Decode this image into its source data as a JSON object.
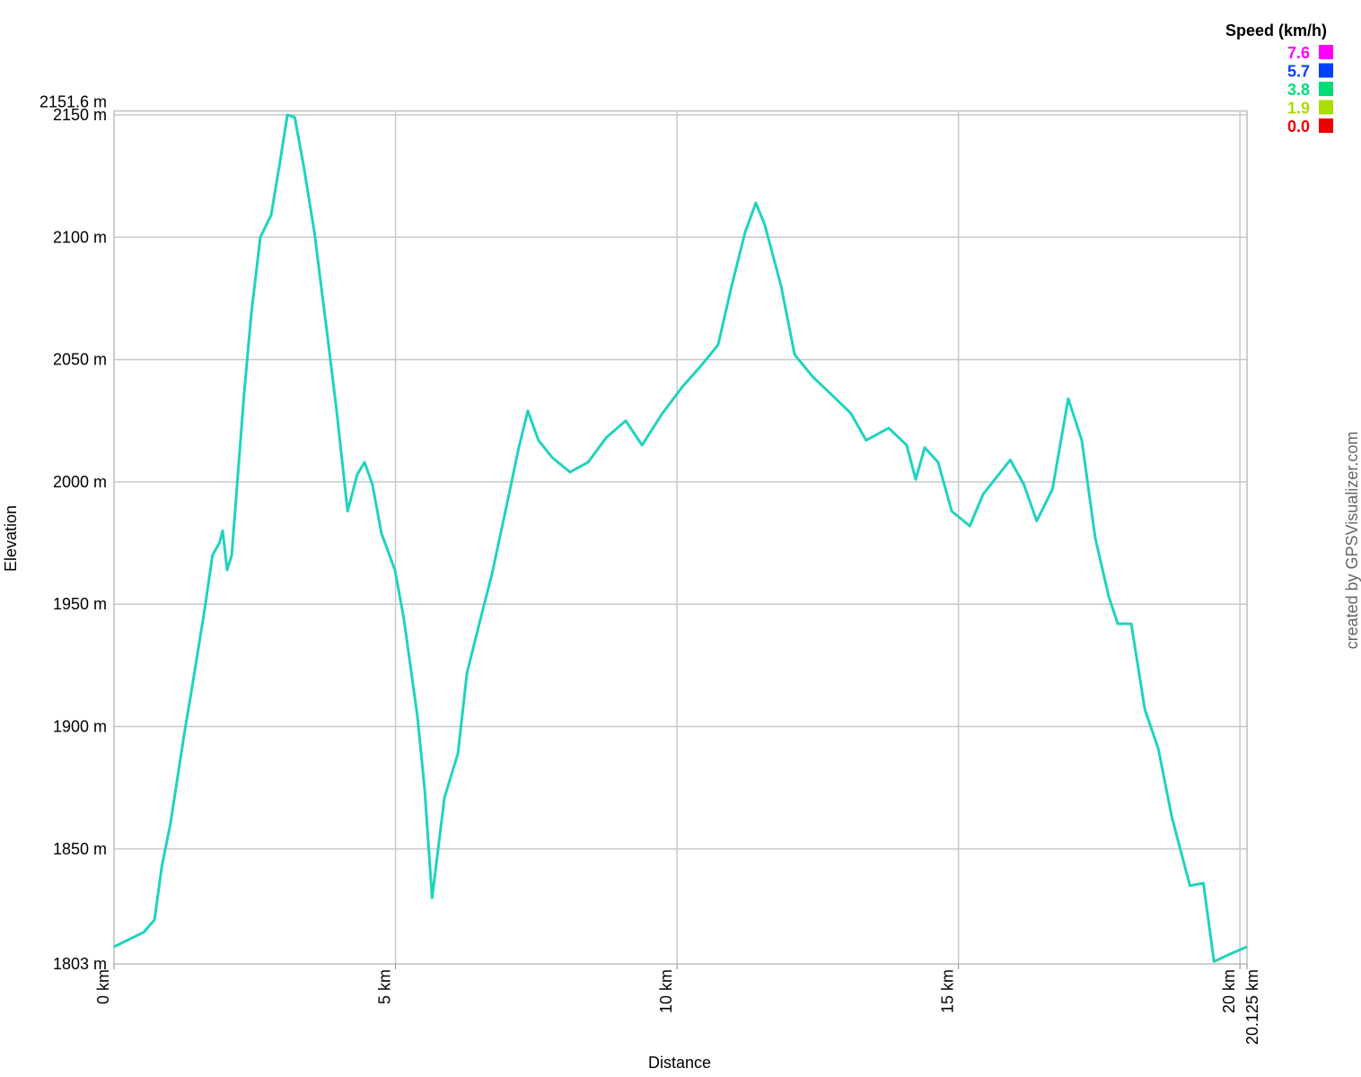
{
  "chart_data": {
    "type": "line",
    "x_label": "Distance",
    "y_label": "Elevation",
    "credit": "created by GPSVisualizer.com",
    "color": "#1fd3c0",
    "grid": true,
    "xlim": [
      0,
      20.125
    ],
    "ylim": [
      1803,
      2151.6
    ],
    "xticks": [
      {
        "value": 0,
        "label": "0 km"
      },
      {
        "value": 5,
        "label": "5 km"
      },
      {
        "value": 10,
        "label": "10 km"
      },
      {
        "value": 15,
        "label": "15 km"
      },
      {
        "value": 20,
        "label": "20 km"
      },
      {
        "value": 20.125,
        "label": "20.125 km"
      }
    ],
    "yticks": [
      {
        "value": 1803,
        "label": "1803 m"
      },
      {
        "value": 1850,
        "label": "1850 m"
      },
      {
        "value": 1900,
        "label": "1900 m"
      },
      {
        "value": 1950,
        "label": "1950 m"
      },
      {
        "value": 2000,
        "label": "2000 m"
      },
      {
        "value": 2050,
        "label": "2050 m"
      },
      {
        "value": 2100,
        "label": "2100 m"
      },
      {
        "value": 2150,
        "label": "2150 m"
      },
      {
        "value": 2151.6,
        "label": "2151.6 m"
      }
    ],
    "x": [
      0,
      0.53,
      0.72,
      0.85,
      1.0,
      1.24,
      1.4,
      1.61,
      1.75,
      1.87,
      1.93,
      2.01,
      2.09,
      2.2,
      2.31,
      2.44,
      2.6,
      2.79,
      2.95,
      3.08,
      3.21,
      3.37,
      3.56,
      3.8,
      3.96,
      4.15,
      4.32,
      4.45,
      4.59,
      4.75,
      4.99,
      5.15,
      5.39,
      5.52,
      5.65,
      5.87,
      6.11,
      6.27,
      6.51,
      6.71,
      6.99,
      7.19,
      7.35,
      7.54,
      7.78,
      8.1,
      8.42,
      8.74,
      9.09,
      9.38,
      9.74,
      10.1,
      10.41,
      10.73,
      10.97,
      11.21,
      11.4,
      11.56,
      11.85,
      12.09,
      12.41,
      12.73,
      13.09,
      13.36,
      13.76,
      14.08,
      14.24,
      14.4,
      14.64,
      14.88,
      15.2,
      15.44,
      15.92,
      16.16,
      16.39,
      16.67,
      16.95,
      17.19,
      17.43,
      17.67,
      17.83,
      18.07,
      18.31,
      18.55,
      18.79,
      19.11,
      19.35,
      19.54,
      19.82,
      20.125
    ],
    "values": [
      1810,
      1816,
      1821,
      1843,
      1860,
      1896,
      1918,
      1948,
      1970,
      1975,
      1980,
      1964,
      1970,
      2003,
      2036,
      2069,
      2100,
      2109,
      2131,
      2150,
      2149,
      2129,
      2102,
      2058,
      2028,
      1988,
      2003,
      2008,
      1999,
      1979,
      1964,
      1944,
      1904,
      1874,
      1830,
      1871,
      1889,
      1922,
      1944,
      1962,
      1992,
      2014,
      2029,
      2017,
      2010,
      2004,
      2008,
      2018,
      2025,
      2015,
      2028,
      2039,
      2047,
      2056,
      2080,
      2102,
      2114,
      2105,
      2080,
      2052,
      2043,
      2036,
      2028,
      2017,
      2022,
      2015,
      2001,
      2014,
      2008,
      1988,
      1982,
      1995,
      2009,
      1999,
      1984,
      1997,
      2034,
      2017,
      1977,
      1953,
      1942,
      1942,
      1907,
      1891,
      1863,
      1835,
      1836,
      1804,
      1807,
      1810
    ],
    "color_scale": {
      "title": "Speed (km/h)",
      "values": [
        7.6,
        5.7,
        3.8,
        1.9,
        0
      ],
      "value_labels": [
        "7.6",
        "5.7",
        "3.8",
        "1.9",
        "0.0"
      ],
      "colors": [
        "#ff00ff",
        "#0040ff",
        "#00dd77",
        "#aadd00",
        "#ee0000"
      ]
    }
  }
}
